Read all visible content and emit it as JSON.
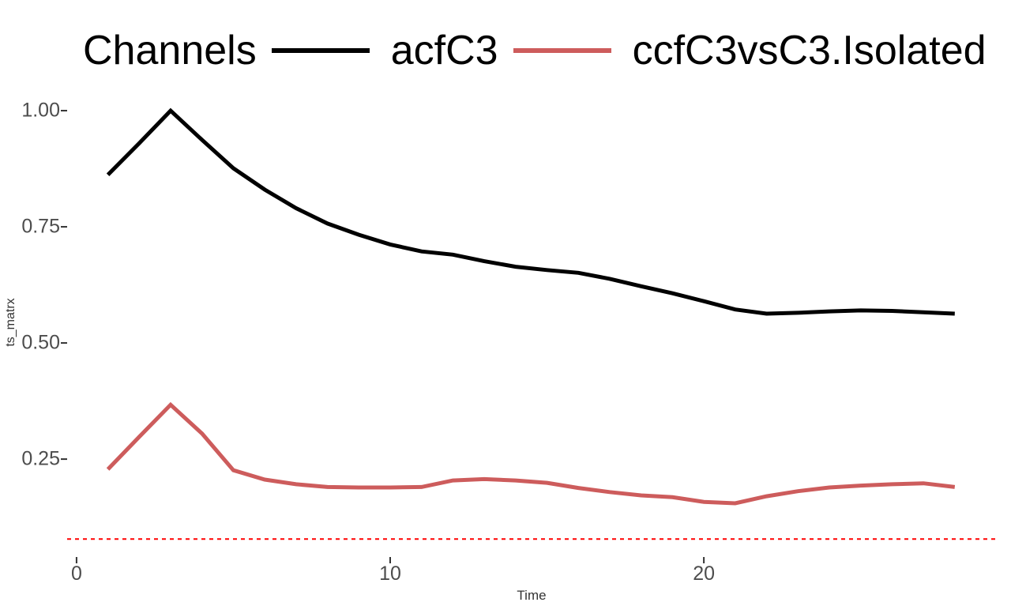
{
  "legend": {
    "title": "Channels",
    "items": [
      {
        "label": "acfC3",
        "color": "#000000"
      },
      {
        "label": "ccfC3vsC3.Isolated",
        "color": "#CD5C5C"
      }
    ]
  },
  "axes": {
    "x_title": "Time",
    "y_title": "ts_matrx"
  },
  "chart_data": {
    "type": "line",
    "title": "",
    "legend_title": "Channels",
    "legend_position": "top",
    "grid": false,
    "xlabel": "Time",
    "ylabel": "ts_matrx",
    "xlim": [
      -0.3,
      29.34
    ],
    "ylim": [
      0.041,
      1.046
    ],
    "xticks": {
      "values": [
        0,
        10,
        20
      ],
      "labels": [
        "0",
        "10",
        "20"
      ]
    },
    "yticks": {
      "values": [
        0.25,
        0.5,
        0.75,
        1.0
      ],
      "labels": [
        "0.25",
        "0.50",
        "0.75",
        "1.00"
      ]
    },
    "x": [
      1,
      2,
      3,
      4,
      5,
      6,
      7,
      8,
      9,
      10,
      11,
      12,
      13,
      14,
      15,
      16,
      17,
      18,
      19,
      20,
      21,
      22,
      23,
      24,
      25,
      26,
      27,
      28
    ],
    "series": [
      {
        "name": "acfC3",
        "color": "#000000",
        "width": 5,
        "values": [
          0.862,
          0.93,
          1.0,
          0.937,
          0.876,
          0.83,
          0.79,
          0.757,
          0.733,
          0.712,
          0.697,
          0.69,
          0.676,
          0.664,
          0.657,
          0.651,
          0.638,
          0.622,
          0.607,
          0.59,
          0.572,
          0.563,
          0.565,
          0.568,
          0.57,
          0.569,
          0.566,
          0.563
        ]
      },
      {
        "name": "ccfC3vsC3.Isolated",
        "color": "#CD5C5C",
        "width": 5,
        "values": [
          0.228,
          0.298,
          0.367,
          0.305,
          0.226,
          0.206,
          0.196,
          0.19,
          0.189,
          0.189,
          0.19,
          0.204,
          0.207,
          0.204,
          0.199,
          0.188,
          0.179,
          0.172,
          0.168,
          0.158,
          0.155,
          0.17,
          0.181,
          0.189,
          0.193,
          0.196,
          0.198,
          0.19
        ]
      }
    ],
    "hline": {
      "y": 0.078,
      "color": "#FF0000",
      "style": "dashed",
      "width": 2
    }
  }
}
